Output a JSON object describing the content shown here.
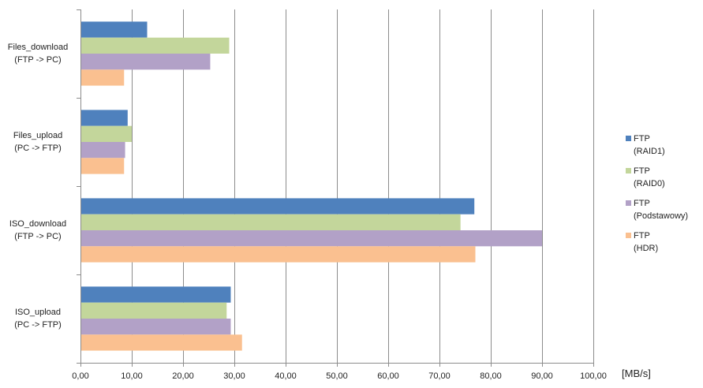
{
  "chart_data": {
    "type": "bar",
    "orientation": "horizontal",
    "categories": [
      [
        "Files_download",
        "(FTP -> PC)"
      ],
      [
        "Files_upload",
        "(PC -> FTP)"
      ],
      [
        "ISO_download",
        "(FTP -> PC)"
      ],
      [
        "ISO_upload",
        "(PC -> FTP)"
      ]
    ],
    "series": [
      {
        "name": [
          "FTP",
          "(RAID1)"
        ],
        "color": "#4F81BD",
        "values": [
          13.0,
          9.2,
          76.8,
          29.3
        ]
      },
      {
        "name": [
          "FTP",
          "(RAID0)"
        ],
        "color": "#C3D69B",
        "values": [
          29.0,
          10.0,
          74.1,
          28.5
        ]
      },
      {
        "name": [
          "FTP",
          "(Podstawowy)"
        ],
        "color": "#B2A1C7",
        "values": [
          25.3,
          8.7,
          90.0,
          29.3
        ]
      },
      {
        "name": [
          "FTP",
          "(HDR)"
        ],
        "color": "#FAC090",
        "values": [
          8.5,
          8.5,
          77.0,
          31.5
        ]
      }
    ],
    "xlim": [
      0,
      100
    ],
    "xticks": [
      "0,00",
      "10,00",
      "20,00",
      "30,00",
      "40,00",
      "50,00",
      "60,00",
      "70,00",
      "80,00",
      "90,00",
      "100,00"
    ],
    "xlabel": "[MB/s]",
    "grid": "vertical",
    "legend_position": "right"
  }
}
